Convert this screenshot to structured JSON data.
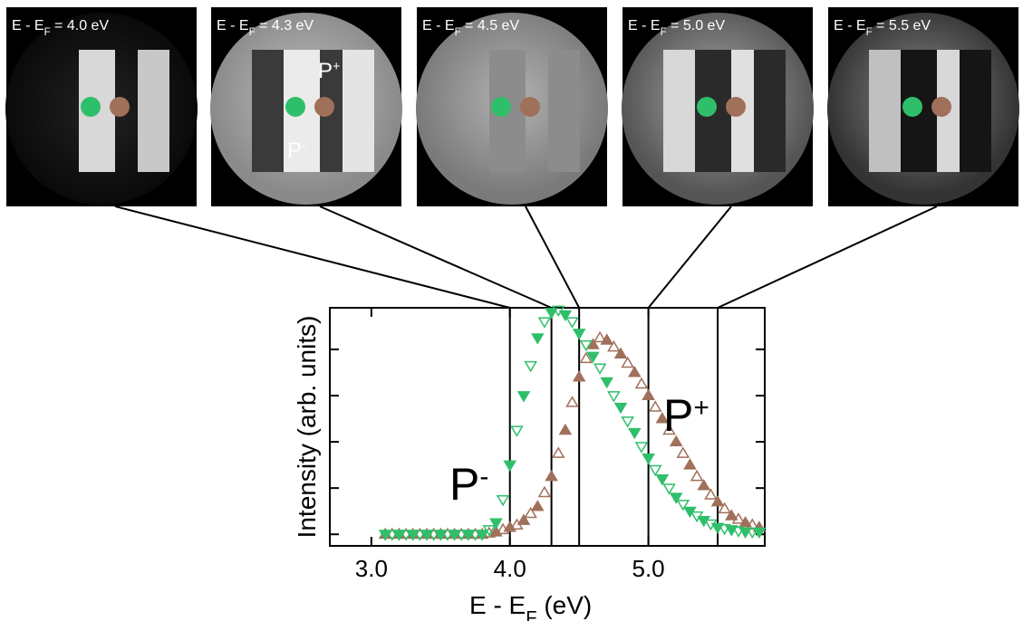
{
  "chart_data": {
    "type": "scatter",
    "images": [
      {
        "prefix": "E - E",
        "sub": "F",
        "suffix": " = 4.0 eV",
        "energy": 4.0
      },
      {
        "prefix": "E - E",
        "sub": "F",
        "suffix": " = 4.3 eV",
        "energy": 4.3,
        "labels": [
          {
            "text": "P",
            "sup": "+"
          },
          {
            "text": "P",
            "sup": "-"
          }
        ]
      },
      {
        "prefix": "E - E",
        "sub": "F",
        "suffix": " = 4.5 eV",
        "energy": 4.5
      },
      {
        "prefix": "E - E",
        "sub": "F",
        "suffix": " = 5.0 eV",
        "energy": 5.0
      },
      {
        "prefix": "E - E",
        "sub": "F",
        "suffix": " = 5.5 eV",
        "energy": 5.5
      }
    ],
    "y_label": "Intensity (arb. units)",
    "x_label": {
      "prefix": "E - E",
      "sub": "F",
      "suffix": " (eV)"
    },
    "annotations": [
      {
        "text": "P",
        "sup": "-"
      },
      {
        "text": "P",
        "sup": "+"
      }
    ],
    "xlim": [
      2.7,
      5.84
    ],
    "xticks": [
      {
        "value": 3,
        "label": "3.0"
      },
      {
        "value": 4,
        "label": "4.0"
      },
      {
        "value": 5,
        "label": "5.0"
      }
    ],
    "ylim": [
      -0.05,
      0.98
    ],
    "yticks": [
      0,
      0.2,
      0.4,
      0.6,
      0.8
    ],
    "x": [
      3.1,
      3.15,
      3.2,
      3.25,
      3.3,
      3.35,
      3.4,
      3.45,
      3.5,
      3.55,
      3.6,
      3.65,
      3.7,
      3.75,
      3.8,
      3.85,
      3.9,
      3.95,
      4.0,
      4.05,
      4.1,
      4.15,
      4.2,
      4.25,
      4.3,
      4.35,
      4.4,
      4.45,
      4.5,
      4.55,
      4.6,
      4.65,
      4.7,
      4.75,
      4.8,
      4.85,
      4.9,
      4.95,
      5.0,
      5.05,
      5.1,
      5.15,
      5.2,
      5.25,
      5.3,
      5.35,
      5.4,
      5.45,
      5.5,
      5.55,
      5.6,
      5.65,
      5.7,
      5.75,
      5.8
    ],
    "series": [
      {
        "color": "#a0705a",
        "marker": "up",
        "values": [
          0,
          0,
          0,
          0,
          0,
          0,
          0,
          0,
          0,
          0,
          0,
          0,
          0,
          0,
          0,
          0.005,
          0.01,
          0.02,
          0.03,
          0.04,
          0.06,
          0.09,
          0.12,
          0.18,
          0.25,
          0.35,
          0.45,
          0.57,
          0.68,
          0.76,
          0.82,
          0.85,
          0.84,
          0.81,
          0.78,
          0.74,
          0.7,
          0.65,
          0.6,
          0.55,
          0.5,
          0.45,
          0.4,
          0.35,
          0.3,
          0.25,
          0.21,
          0.17,
          0.14,
          0.11,
          0.08,
          0.065,
          0.05,
          0.04,
          0.03
        ]
      },
      {
        "color": "#2fbf6a",
        "marker": "down",
        "values": [
          0,
          0,
          0,
          0,
          0,
          0,
          0,
          0,
          0,
          0,
          0,
          0,
          0,
          0,
          0,
          0.02,
          0.05,
          0.15,
          0.3,
          0.45,
          0.6,
          0.73,
          0.85,
          0.92,
          0.96,
          0.97,
          0.95,
          0.92,
          0.87,
          0.82,
          0.77,
          0.72,
          0.66,
          0.6,
          0.55,
          0.49,
          0.44,
          0.38,
          0.33,
          0.28,
          0.24,
          0.2,
          0.16,
          0.13,
          0.1,
          0.08,
          0.06,
          0.045,
          0.03,
          0.025,
          0.02,
          0.015,
          0.01,
          0.01,
          0.01
        ]
      }
    ]
  }
}
